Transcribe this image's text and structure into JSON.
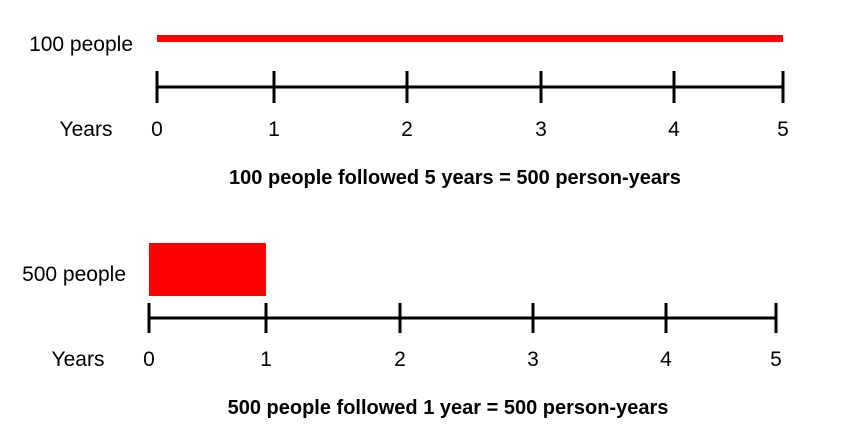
{
  "panels": [
    {
      "group_label": "100 people",
      "axis_label": "Years",
      "ticks": [
        "0",
        "1",
        "2",
        "3",
        "4",
        "5"
      ],
      "people": 100,
      "years_followed": 5,
      "caption": "100 people followed 5 years = 500 person-years"
    },
    {
      "group_label": "500 people",
      "axis_label": "Years",
      "ticks": [
        "0",
        "1",
        "2",
        "3",
        "4",
        "5"
      ],
      "people": 500,
      "years_followed": 1,
      "caption": "500 people followed 1 year = 500 person-years"
    }
  ],
  "colors": {
    "bar": "#ff0000",
    "axis": "#000000"
  }
}
